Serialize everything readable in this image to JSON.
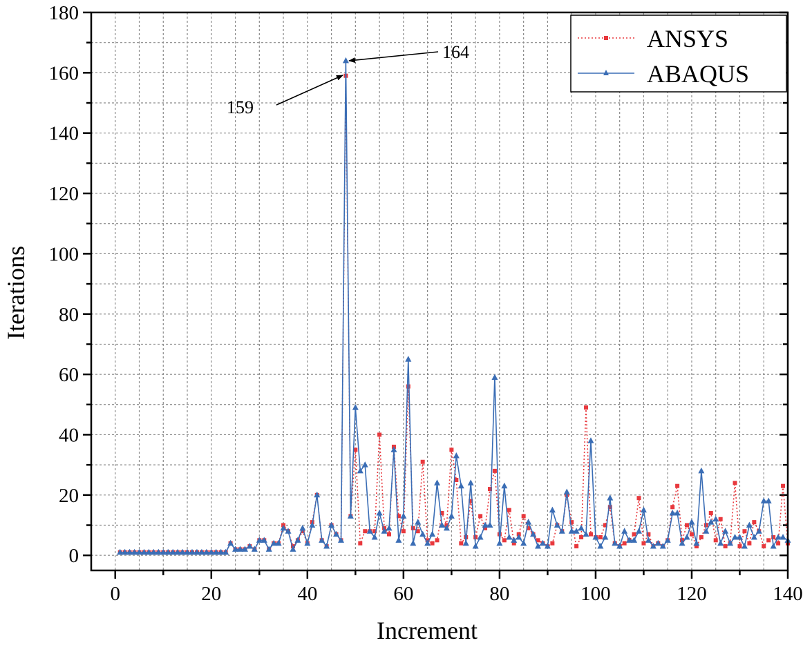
{
  "chart_data": {
    "type": "line",
    "title": "",
    "xlabel": "Increment",
    "ylabel": "Iterations",
    "xlim": [
      -5,
      140
    ],
    "ylim": [
      -5,
      180
    ],
    "xticks": [
      "0",
      "20",
      "40",
      "60",
      "80",
      "100",
      "120",
      "140"
    ],
    "yticks": [
      "0",
      "20",
      "40",
      "60",
      "80",
      "100",
      "120",
      "140",
      "160",
      "180"
    ],
    "grid": true,
    "legend_position": "top-right",
    "x": [
      1,
      2,
      3,
      4,
      5,
      6,
      7,
      8,
      9,
      10,
      11,
      12,
      13,
      14,
      15,
      16,
      17,
      18,
      19,
      20,
      21,
      22,
      23,
      24,
      25,
      26,
      27,
      28,
      29,
      30,
      31,
      32,
      33,
      34,
      35,
      36,
      37,
      38,
      39,
      40,
      41,
      42,
      43,
      44,
      45,
      46,
      47,
      48,
      49,
      50,
      51,
      52,
      53,
      54,
      55,
      56,
      57,
      58,
      59,
      60,
      61,
      62,
      63,
      64,
      65,
      66,
      67,
      68,
      69,
      70,
      71,
      72,
      73,
      74,
      75,
      76,
      77,
      78,
      79,
      80,
      81,
      82,
      83,
      84,
      85,
      86,
      87,
      88,
      89,
      90,
      91,
      92,
      93,
      94,
      95,
      96,
      97,
      98,
      99,
      100,
      101,
      102,
      103,
      104,
      105,
      106,
      107,
      108,
      109,
      110,
      111,
      112,
      113,
      114,
      115,
      116,
      117,
      118,
      119,
      120,
      121,
      122,
      123,
      124,
      125,
      126,
      127,
      128,
      129,
      130,
      131,
      132,
      133,
      134,
      135,
      136,
      137,
      138,
      139,
      140
    ],
    "series": [
      {
        "name": "ANSYS",
        "color": "#e8383d",
        "line": "dotted",
        "marker": "square",
        "values": [
          1,
          1,
          1,
          1,
          1,
          1,
          1,
          1,
          1,
          1,
          1,
          1,
          1,
          1,
          1,
          1,
          1,
          1,
          1,
          1,
          1,
          1,
          1,
          4,
          2,
          2,
          2,
          3,
          2,
          5,
          5,
          2,
          4,
          4,
          10,
          8,
          3,
          5,
          8,
          4,
          11,
          20,
          5,
          3,
          10,
          7,
          5,
          159,
          13,
          35,
          4,
          8,
          8,
          8,
          40,
          9,
          7,
          36,
          13,
          8,
          56,
          9,
          8,
          31,
          5,
          4,
          5,
          14,
          10,
          35,
          25,
          4,
          6,
          18,
          6,
          13,
          9,
          22,
          28,
          7,
          5,
          15,
          4,
          7,
          13,
          9,
          7,
          5,
          4,
          3,
          4,
          10,
          8,
          20,
          11,
          3,
          6,
          49,
          7,
          6,
          6,
          10,
          16,
          4,
          3,
          4,
          5,
          7,
          19,
          4,
          7,
          3,
          4,
          3,
          5,
          16,
          23,
          5,
          10,
          7,
          3,
          6,
          10,
          14,
          5,
          12,
          3,
          4,
          24,
          3,
          8,
          4,
          11,
          8,
          3,
          5,
          6,
          4,
          23,
          4
        ]
      },
      {
        "name": "ABAQUS",
        "color": "#3a6db5",
        "line": "solid",
        "marker": "triangle",
        "values": [
          1,
          1,
          1,
          1,
          1,
          1,
          1,
          1,
          1,
          1,
          1,
          1,
          1,
          1,
          1,
          1,
          1,
          1,
          1,
          1,
          1,
          1,
          1,
          4,
          2,
          2,
          2,
          3,
          2,
          5,
          5,
          2,
          4,
          4,
          9,
          8,
          2,
          5,
          9,
          4,
          10,
          20,
          5,
          3,
          10,
          7,
          5,
          164,
          13,
          49,
          28,
          30,
          8,
          6,
          14,
          8,
          9,
          35,
          5,
          13,
          65,
          4,
          11,
          7,
          4,
          7,
          24,
          10,
          9,
          13,
          33,
          23,
          4,
          24,
          3,
          6,
          10,
          10,
          59,
          4,
          23,
          6,
          5,
          6,
          4,
          11,
          7,
          3,
          4,
          3,
          15,
          10,
          8,
          21,
          8,
          8,
          9,
          7,
          38,
          6,
          3,
          6,
          19,
          4,
          3,
          8,
          5,
          5,
          8,
          15,
          5,
          3,
          4,
          3,
          5,
          14,
          14,
          4,
          6,
          11,
          4,
          28,
          8,
          11,
          12,
          4,
          8,
          4,
          6,
          6,
          3,
          10,
          6,
          8,
          18,
          18,
          3,
          6,
          6,
          5
        ]
      }
    ],
    "annotations": [
      {
        "text": "164",
        "x": 48,
        "y": 164,
        "series": "ABAQUS"
      },
      {
        "text": "159",
        "x": 48,
        "y": 159,
        "series": "ANSYS"
      }
    ]
  }
}
